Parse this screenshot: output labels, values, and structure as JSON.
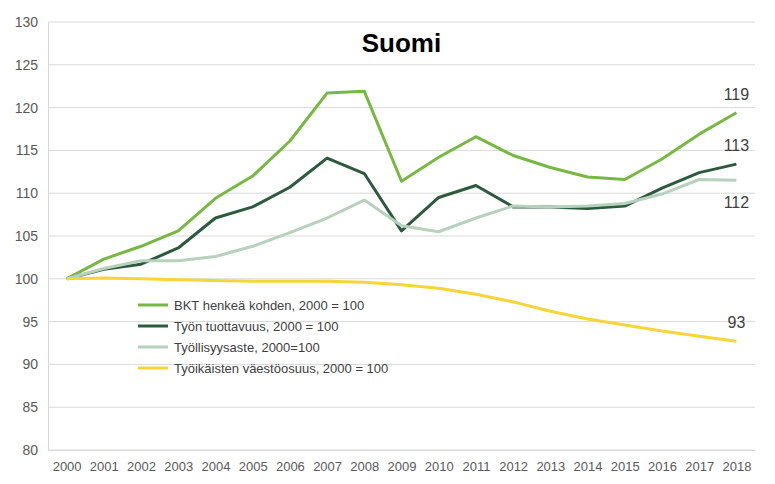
{
  "chart_data": {
    "type": "line",
    "title": "Suomi",
    "categories": [
      "2000",
      "2001",
      "2002",
      "2003",
      "2004",
      "2005",
      "2006",
      "2007",
      "2008",
      "2009",
      "2010",
      "2011",
      "2012",
      "2013",
      "2014",
      "2015",
      "2016",
      "2017",
      "2018"
    ],
    "series": [
      {
        "name": "BKT henkeä kohden, 2000 = 100",
        "color": "#77b843",
        "values": [
          100,
          102.3,
          103.8,
          105.6,
          109.4,
          112.0,
          116.1,
          121.7,
          121.9,
          111.4,
          114.2,
          116.6,
          114.4,
          113.0,
          111.9,
          111.6,
          114.0,
          116.9,
          119.4
        ]
      },
      {
        "name": "Työn tuottavuus, 2000 = 100",
        "color": "#2d5a3c",
        "values": [
          100,
          101.1,
          101.7,
          103.6,
          107.1,
          108.4,
          110.7,
          114.1,
          112.3,
          105.6,
          109.5,
          110.9,
          108.4,
          108.4,
          108.2,
          108.5,
          110.6,
          112.4,
          113.4
        ]
      },
      {
        "name": "Työllisyysaste, 2000=100",
        "color": "#b7d1bc",
        "values": [
          100,
          101.2,
          102.1,
          102.1,
          102.6,
          103.8,
          105.4,
          107.1,
          109.2,
          106.2,
          105.5,
          107.1,
          108.5,
          108.4,
          108.5,
          108.8,
          109.9,
          111.6,
          111.5
        ]
      },
      {
        "name": "Työikäisten väestöosuus, 2000 = 100",
        "color": "#f5d537",
        "values": [
          100,
          100.1,
          100.0,
          99.9,
          99.8,
          99.7,
          99.7,
          99.7,
          99.6,
          99.3,
          98.9,
          98.2,
          97.3,
          96.2,
          95.3,
          94.6,
          93.9,
          93.3,
          92.7
        ]
      }
    ],
    "annotations": [
      {
        "text": "119",
        "series": 0,
        "position": "above"
      },
      {
        "text": "113",
        "series": 1,
        "position": "above"
      },
      {
        "text": "112",
        "series": 2,
        "position": "below"
      },
      {
        "text": "93",
        "series": 3,
        "position": "above"
      }
    ],
    "ylim": [
      80,
      130
    ],
    "yticks": [
      80,
      85,
      90,
      95,
      100,
      105,
      110,
      115,
      120,
      125,
      130
    ],
    "grid": true,
    "legend": "lower-left"
  }
}
